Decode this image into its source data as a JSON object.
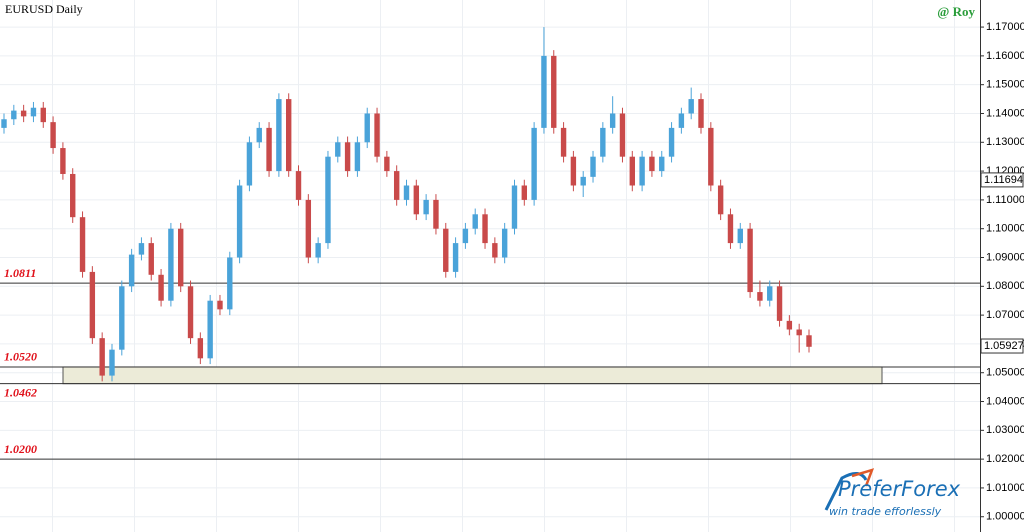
{
  "chart_data": {
    "type": "candlestick",
    "title": "EURUSD Daily",
    "author": "@ Roy",
    "up_color": "#4aa3d9",
    "down_color": "#c94a4a",
    "grid": true,
    "ylim": [
      0.9947,
      1.1794
    ],
    "yticks": [
      {
        "value": 1.0,
        "label": "1.00000"
      },
      {
        "value": 1.01,
        "label": "1.01000"
      },
      {
        "value": 1.02,
        "label": "1.02000"
      },
      {
        "value": 1.03,
        "label": "1.03000"
      },
      {
        "value": 1.04,
        "label": "1.04000"
      },
      {
        "value": 1.05,
        "label": "1.05000"
      },
      {
        "value": 1.06,
        "label": "1.06000"
      },
      {
        "value": 1.07,
        "label": "1.07000"
      },
      {
        "value": 1.08,
        "label": "1.08000"
      },
      {
        "value": 1.09,
        "label": "1.09000"
      },
      {
        "value": 1.1,
        "label": "1.10000"
      },
      {
        "value": 1.11,
        "label": "1.11000"
      },
      {
        "value": 1.12,
        "label": "1.12000"
      },
      {
        "value": 1.13,
        "label": "1.13000"
      },
      {
        "value": 1.14,
        "label": "1.14000"
      },
      {
        "value": 1.15,
        "label": "1.15000"
      },
      {
        "value": 1.16,
        "label": "1.16000"
      },
      {
        "value": 1.17,
        "label": "1.17000"
      }
    ],
    "levels": [
      1.0811,
      {
        "value": 1.052,
        "label": "1.0520"
      },
      1.0462,
      {
        "value": 1.02,
        "label": "1.0200"
      }
    ],
    "price_markers": [
      1.11694,
      1.05927
    ],
    "ohlc": [
      [
        1.135,
        1.14,
        1.133,
        1.138
      ],
      [
        1.138,
        1.143,
        1.136,
        1.141
      ],
      [
        1.141,
        1.143,
        1.137,
        1.139
      ],
      [
        1.139,
        1.144,
        1.137,
        1.142
      ],
      [
        1.142,
        1.144,
        1.135,
        1.137
      ],
      [
        1.137,
        1.139,
        1.126,
        1.128
      ],
      [
        1.128,
        1.13,
        1.117,
        1.119
      ],
      [
        1.119,
        1.121,
        1.102,
        1.104
      ],
      [
        1.104,
        1.106,
        1.083,
        1.085
      ],
      [
        1.085,
        1.087,
        1.06,
        1.062
      ],
      [
        1.062,
        1.064,
        1.047,
        1.049
      ],
      [
        1.049,
        1.06,
        1.047,
        1.058
      ],
      [
        1.058,
        1.082,
        1.056,
        1.08
      ],
      [
        1.08,
        1.093,
        1.078,
        1.091
      ],
      [
        1.091,
        1.097,
        1.089,
        1.095
      ],
      [
        1.095,
        1.097,
        1.082,
        1.084
      ],
      [
        1.084,
        1.086,
        1.073,
        1.075
      ],
      [
        1.075,
        1.102,
        1.073,
        1.1
      ],
      [
        1.1,
        1.102,
        1.078,
        1.08
      ],
      [
        1.08,
        1.082,
        1.06,
        1.062
      ],
      [
        1.062,
        1.064,
        1.053,
        1.055
      ],
      [
        1.055,
        1.077,
        1.053,
        1.075
      ],
      [
        1.075,
        1.077,
        1.07,
        1.072
      ],
      [
        1.072,
        1.092,
        1.07,
        1.09
      ],
      [
        1.09,
        1.117,
        1.088,
        1.115
      ],
      [
        1.115,
        1.132,
        1.113,
        1.13
      ],
      [
        1.13,
        1.137,
        1.128,
        1.135
      ],
      [
        1.135,
        1.137,
        1.118,
        1.12
      ],
      [
        1.12,
        1.147,
        1.118,
        1.145
      ],
      [
        1.145,
        1.147,
        1.118,
        1.12
      ],
      [
        1.12,
        1.122,
        1.108,
        1.11
      ],
      [
        1.11,
        1.112,
        1.088,
        1.09
      ],
      [
        1.09,
        1.097,
        1.088,
        1.095
      ],
      [
        1.095,
        1.127,
        1.093,
        1.125
      ],
      [
        1.125,
        1.132,
        1.123,
        1.13
      ],
      [
        1.13,
        1.132,
        1.118,
        1.12
      ],
      [
        1.12,
        1.132,
        1.118,
        1.13
      ],
      [
        1.13,
        1.142,
        1.128,
        1.14
      ],
      [
        1.14,
        1.142,
        1.123,
        1.125
      ],
      [
        1.125,
        1.127,
        1.118,
        1.12
      ],
      [
        1.12,
        1.122,
        1.108,
        1.11
      ],
      [
        1.11,
        1.117,
        1.108,
        1.115
      ],
      [
        1.115,
        1.117,
        1.103,
        1.105
      ],
      [
        1.105,
        1.112,
        1.103,
        1.11
      ],
      [
        1.11,
        1.112,
        1.098,
        1.1
      ],
      [
        1.1,
        1.102,
        1.083,
        1.085
      ],
      [
        1.085,
        1.097,
        1.083,
        1.095
      ],
      [
        1.095,
        1.102,
        1.093,
        1.1
      ],
      [
        1.1,
        1.107,
        1.098,
        1.105
      ],
      [
        1.105,
        1.107,
        1.093,
        1.095
      ],
      [
        1.095,
        1.097,
        1.088,
        1.09
      ],
      [
        1.09,
        1.102,
        1.088,
        1.1
      ],
      [
        1.1,
        1.117,
        1.098,
        1.115
      ],
      [
        1.115,
        1.117,
        1.108,
        1.11
      ],
      [
        1.11,
        1.137,
        1.108,
        1.135
      ],
      [
        1.135,
        1.17,
        1.133,
        1.16
      ],
      [
        1.16,
        1.162,
        1.133,
        1.135
      ],
      [
        1.135,
        1.137,
        1.123,
        1.125
      ],
      [
        1.125,
        1.127,
        1.113,
        1.115
      ],
      [
        1.115,
        1.12,
        1.111,
        1.118
      ],
      [
        1.118,
        1.127,
        1.116,
        1.125
      ],
      [
        1.125,
        1.137,
        1.123,
        1.135
      ],
      [
        1.135,
        1.146,
        1.133,
        1.14
      ],
      [
        1.14,
        1.142,
        1.123,
        1.125
      ],
      [
        1.125,
        1.127,
        1.113,
        1.115
      ],
      [
        1.115,
        1.127,
        1.113,
        1.125
      ],
      [
        1.125,
        1.127,
        1.118,
        1.12
      ],
      [
        1.12,
        1.127,
        1.118,
        1.125
      ],
      [
        1.125,
        1.137,
        1.123,
        1.135
      ],
      [
        1.135,
        1.142,
        1.133,
        1.14
      ],
      [
        1.14,
        1.149,
        1.138,
        1.145
      ],
      [
        1.145,
        1.147,
        1.133,
        1.135
      ],
      [
        1.135,
        1.137,
        1.113,
        1.115
      ],
      [
        1.115,
        1.117,
        1.103,
        1.105
      ],
      [
        1.105,
        1.107,
        1.093,
        1.095
      ],
      [
        1.095,
        1.102,
        1.093,
        1.1
      ],
      [
        1.1,
        1.102,
        1.076,
        1.078
      ],
      [
        1.078,
        1.082,
        1.073,
        1.075
      ],
      [
        1.075,
        1.082,
        1.073,
        1.08
      ],
      [
        1.08,
        1.082,
        1.066,
        1.068
      ],
      [
        1.068,
        1.07,
        1.063,
        1.065
      ],
      [
        1.065,
        1.067,
        1.057,
        1.063
      ],
      [
        1.063,
        1.065,
        1.057,
        1.059
      ]
    ]
  },
  "logo": {
    "brand": "PreferForex",
    "tagline": "win trade efforlessly"
  }
}
